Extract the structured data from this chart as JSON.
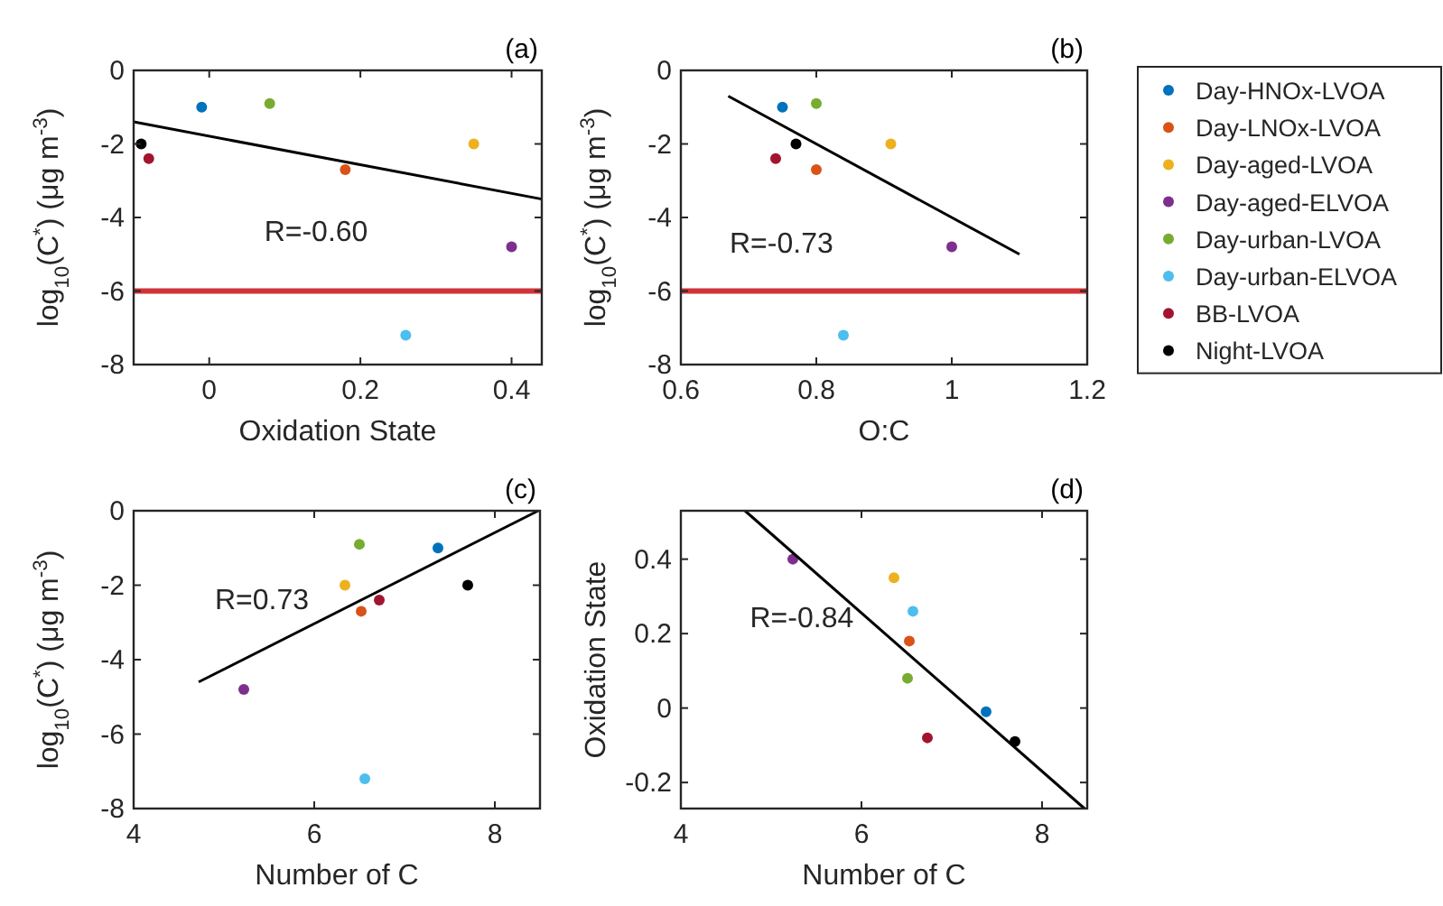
{
  "chart_data": [
    {
      "type": "scatter",
      "xlabel": "Oxidation State",
      "ylabel": "log$_{10}$(C$^{*}$) (μg m$^{-3}$)",
      "annotations": [
        "(a)",
        "R=-0.60"
      ],
      "xlim": [
        -0.1,
        0.44
      ],
      "xticks": [
        0,
        0.2,
        0.4
      ],
      "ylim": [
        -8,
        0
      ],
      "yticks": [
        -8,
        -6,
        -4,
        -2,
        0
      ],
      "marker": "circle",
      "grid": false,
      "legend": false,
      "ref_lines": [
        {
          "axis": "y",
          "value": -6,
          "color": "#d0343a"
        }
      ],
      "series": [
        {
          "color": "#0072bd",
          "x": [
            -0.01
          ],
          "values": [
            -1.0
          ]
        },
        {
          "color": "#d95319",
          "x": [
            0.18
          ],
          "values": [
            -2.7
          ]
        },
        {
          "color": "#edb120",
          "x": [
            0.35
          ],
          "values": [
            -2.0
          ]
        },
        {
          "color": "#7e2f8e",
          "x": [
            0.4
          ],
          "values": [
            -4.8
          ]
        },
        {
          "color": "#77ac30",
          "x": [
            0.08
          ],
          "values": [
            -0.9
          ]
        },
        {
          "color": "#4dbeee",
          "x": [
            0.26
          ],
          "values": [
            -7.2
          ]
        },
        {
          "color": "#a2142f",
          "x": [
            -0.08
          ],
          "values": [
            -2.4
          ]
        },
        {
          "color": "#000000",
          "x": [
            -0.09
          ],
          "values": [
            -2.0
          ]
        },
        {
          "type": "line",
          "marker": "none",
          "color": "#000000",
          "x": [
            -0.1,
            0.44
          ],
          "values": [
            -1.4,
            -3.5
          ]
        }
      ]
    },
    {
      "type": "scatter",
      "xlabel": "O:C",
      "ylabel": "log$_{10}$(C$^{*}$) (μg m$^{-3}$)",
      "annotations": [
        "(b)",
        "R=-0.73"
      ],
      "xlim": [
        0.6,
        1.2
      ],
      "xticks": [
        0.6,
        0.8,
        1,
        1.2
      ],
      "ylim": [
        -8,
        0
      ],
      "yticks": [
        -8,
        -6,
        -4,
        -2,
        0
      ],
      "marker": "circle",
      "grid": false,
      "legend": "right",
      "ref_lines": [
        {
          "axis": "y",
          "value": -6,
          "color": "#d0343a"
        }
      ],
      "series": [
        {
          "name": "Day-HNOx-LVOA",
          "color": "#0072bd",
          "x": [
            0.75
          ],
          "values": [
            -1.0
          ]
        },
        {
          "name": "Day-LNOx-LVOA",
          "color": "#d95319",
          "x": [
            0.8
          ],
          "values": [
            -2.7
          ]
        },
        {
          "name": "Day-aged-LVOA",
          "color": "#edb120",
          "x": [
            0.91
          ],
          "values": [
            -2.0
          ]
        },
        {
          "name": "Day-aged-ELVOA",
          "color": "#7e2f8e",
          "x": [
            1.0
          ],
          "values": [
            -4.8
          ]
        },
        {
          "name": "Day-urban-LVOA",
          "color": "#77ac30",
          "x": [
            0.8
          ],
          "values": [
            -0.9
          ]
        },
        {
          "name": "Day-urban-ELVOA",
          "color": "#4dbeee",
          "x": [
            0.84
          ],
          "values": [
            -7.2
          ]
        },
        {
          "name": "BB-LVOA",
          "color": "#a2142f",
          "x": [
            0.74
          ],
          "values": [
            -2.4
          ]
        },
        {
          "name": "Night-LVOA",
          "color": "#000000",
          "x": [
            0.77
          ],
          "values": [
            -2.0
          ]
        },
        {
          "type": "line",
          "marker": "none",
          "color": "#000000",
          "x": [
            0.67,
            1.1
          ],
          "values": [
            -0.7,
            -5.0
          ]
        }
      ]
    },
    {
      "type": "scatter",
      "xlabel": "Number of C",
      "ylabel": "log$_{10}$(C$^{*}$) (μg m$^{-3}$)",
      "annotations": [
        "(c)",
        "R=0.73"
      ],
      "xlim": [
        4,
        8.5
      ],
      "xticks": [
        4,
        6,
        8
      ],
      "ylim": [
        -8,
        0
      ],
      "yticks": [
        -8,
        -6,
        -4,
        -2,
        0
      ],
      "marker": "circle",
      "grid": false,
      "legend": false,
      "series": [
        {
          "color": "#0072bd",
          "x": [
            7.37
          ],
          "values": [
            -1.0
          ]
        },
        {
          "color": "#d95319",
          "x": [
            6.52
          ],
          "values": [
            -2.7
          ]
        },
        {
          "color": "#edb120",
          "x": [
            6.34
          ],
          "values": [
            -2.0
          ]
        },
        {
          "color": "#7e2f8e",
          "x": [
            5.22
          ],
          "values": [
            -4.8
          ]
        },
        {
          "color": "#77ac30",
          "x": [
            6.5
          ],
          "values": [
            -0.9
          ]
        },
        {
          "color": "#4dbeee",
          "x": [
            6.56
          ],
          "values": [
            -7.2
          ]
        },
        {
          "color": "#a2142f",
          "x": [
            6.72
          ],
          "values": [
            -2.4
          ]
        },
        {
          "color": "#000000",
          "x": [
            7.7
          ],
          "values": [
            -2.0
          ]
        },
        {
          "type": "line",
          "marker": "none",
          "color": "#000000",
          "x": [
            4.72,
            8.48
          ],
          "values": [
            -4.6,
            0
          ]
        }
      ]
    },
    {
      "type": "scatter",
      "xlabel": "Number of C",
      "ylabel": "Oxidation State",
      "annotations": [
        "(d)",
        "R=-0.84"
      ],
      "xlim": [
        4,
        8.5
      ],
      "xticks": [
        4,
        6,
        8
      ],
      "ylim": [
        -0.27,
        0.53
      ],
      "yticks": [
        -0.2,
        0,
        0.2,
        0.4
      ],
      "marker": "circle",
      "grid": false,
      "legend": false,
      "series": [
        {
          "color": "#0072bd",
          "x": [
            7.38
          ],
          "values": [
            -0.01
          ]
        },
        {
          "color": "#d95319",
          "x": [
            6.53
          ],
          "values": [
            0.18
          ]
        },
        {
          "color": "#edb120",
          "x": [
            6.36
          ],
          "values": [
            0.35
          ]
        },
        {
          "color": "#7e2f8e",
          "x": [
            5.24
          ],
          "values": [
            0.4
          ]
        },
        {
          "color": "#77ac30",
          "x": [
            6.51
          ],
          "values": [
            0.08
          ]
        },
        {
          "color": "#4dbeee",
          "x": [
            6.57
          ],
          "values": [
            0.26
          ]
        },
        {
          "color": "#a2142f",
          "x": [
            6.73
          ],
          "values": [
            -0.08
          ]
        },
        {
          "color": "#000000",
          "x": [
            7.7
          ],
          "values": [
            -0.09
          ]
        },
        {
          "type": "line",
          "marker": "none",
          "color": "#000000",
          "x": [
            4.71,
            8.47
          ],
          "values": [
            0.53,
            -0.27
          ]
        }
      ]
    }
  ]
}
